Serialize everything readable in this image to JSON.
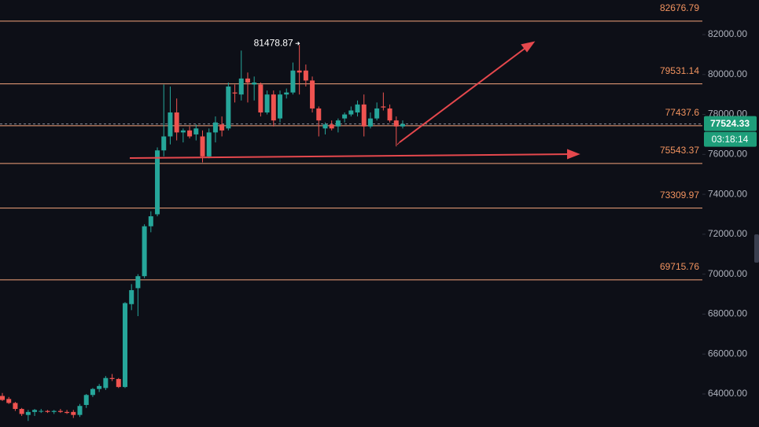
{
  "chart_data": {
    "type": "candlestick",
    "open": [
      63900,
      63750,
      63550,
      63250,
      62950,
      63100,
      63150,
      63150,
      63100,
      63150,
      63100,
      63100,
      62950,
      63450,
      63950,
      64250,
      64300,
      64800,
      64750,
      64350,
      68500,
      69300,
      69900,
      72400,
      73000,
      76200,
      76900,
      78100,
      77100,
      77200,
      77000,
      76900,
      75900,
      77100,
      77500,
      77300,
      79100,
      79000,
      79800,
      79500,
      79500,
      78100,
      79000,
      77800,
      79000,
      79100,
      80200,
      80200,
      79700,
      78300,
      77300,
      77500,
      77400,
      77800,
      78000,
      78100,
      78500,
      77400,
      77800,
      78400,
      78300,
      77700,
      77400
    ],
    "high": [
      64050,
      63850,
      63600,
      63300,
      63200,
      63250,
      63250,
      63200,
      63200,
      63250,
      63200,
      63200,
      63500,
      64000,
      64300,
      64500,
      64900,
      65000,
      64800,
      68600,
      69500,
      70000,
      72500,
      73150,
      76350,
      79500,
      79400,
      78800,
      77300,
      77400,
      77500,
      77200,
      77300,
      77900,
      77900,
      79600,
      79500,
      81200,
      80100,
      79900,
      79600,
      79200,
      79200,
      79200,
      79300,
      80600,
      81478.87,
      80500,
      79900,
      78400,
      77600,
      77700,
      77800,
      78100,
      78400,
      78700,
      79000,
      78100,
      78600,
      79100,
      78500,
      77900,
      77700
    ],
    "low": [
      63650,
      63500,
      63150,
      62900,
      62650,
      62900,
      63050,
      63050,
      63000,
      63050,
      63000,
      62800,
      62850,
      63300,
      63850,
      64100,
      64200,
      64650,
      64300,
      64300,
      68200,
      67900,
      69800,
      72100,
      72900,
      75900,
      76500,
      76700,
      76600,
      76800,
      76700,
      75600,
      75800,
      76600,
      76900,
      77200,
      78600,
      78700,
      78600,
      78700,
      77900,
      78000,
      77400,
      77600,
      78800,
      79000,
      79000,
      79400,
      78100,
      76900,
      77000,
      77200,
      77100,
      77600,
      77900,
      77900,
      76900,
      77300,
      77700,
      78200,
      77600,
      76400,
      77300
    ],
    "close": [
      63700,
      63550,
      63250,
      63000,
      63100,
      63200,
      63150,
      63100,
      63150,
      63100,
      63050,
      62950,
      63400,
      63950,
      64250,
      64400,
      64800,
      64750,
      64350,
      68550,
      69200,
      69900,
      72400,
      72900,
      76200,
      76900,
      78100,
      77100,
      77200,
      76900,
      77300,
      75900,
      77100,
      77600,
      77200,
      79400,
      79050,
      79800,
      79600,
      79600,
      78100,
      79000,
      77700,
      79000,
      79100,
      80200,
      80100,
      79700,
      78300,
      77700,
      77500,
      77300,
      77700,
      78000,
      78200,
      78500,
      77400,
      77800,
      78300,
      78350,
      77700,
      77400,
      77524.33
    ],
    "up_color": "#26a69a",
    "down_color": "#ef5350",
    "ylim": [
      62346,
      83733
    ],
    "yticks": [
      {
        "value": 64000,
        "label": "64000.00"
      },
      {
        "value": 66000,
        "label": "66000.00"
      },
      {
        "value": 68000,
        "label": "68000.00"
      },
      {
        "value": 70000,
        "label": "70000.00"
      },
      {
        "value": 72000,
        "label": "72000.00"
      },
      {
        "value": 74000,
        "label": "74000.00"
      },
      {
        "value": 76000,
        "label": "76000.00"
      },
      {
        "value": 78000,
        "label": "78000.00"
      },
      {
        "value": 80000,
        "label": "80000.00"
      },
      {
        "value": 82000,
        "label": "82000.00"
      }
    ],
    "levels": [
      82676.79,
      79531.14,
      77437.6,
      75543.37,
      73309.97,
      69715.76
    ],
    "level_color": "#f4a47c",
    "high_marker": 81478.87,
    "current_price": 77524.33,
    "countdown": "03:18:14"
  }
}
